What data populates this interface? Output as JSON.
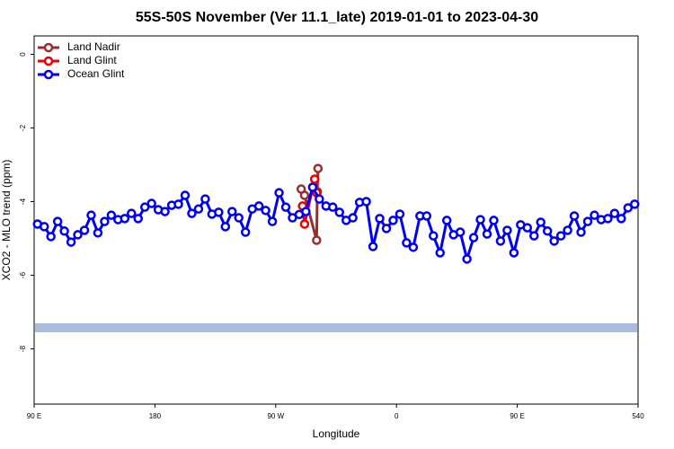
{
  "chart_data": {
    "type": "line",
    "title": "55S-50S November (Ver 11.1_late)   2019-01-01 to 2023-04-30",
    "xlabel": "Longitude",
    "ylabel": "XCO2 - MLO trend (ppm)",
    "xlim": [
      90,
      540
    ],
    "xticks": [
      {
        "value": 90,
        "label": "90 E"
      },
      180,
      {
        "value": 270,
        "label": "90 W"
      },
      {
        "value": 360,
        "label": "0"
      },
      {
        "value": 450,
        "label": "90 E"
      },
      540
    ],
    "ylim": [
      -9.5,
      0.5
    ],
    "yticks": [
      0,
      -2,
      -4,
      -6,
      -8
    ],
    "legend": "upper left",
    "series": [
      {
        "name": "Land Nadir",
        "color": "#9b2d2d",
        "x": [
          289,
          291.5,
          300.5,
          301,
          301.5
        ],
        "values": [
          -3.66,
          -3.83,
          -5.05,
          -3.73,
          -3.1
        ]
      },
      {
        "name": "Land Glint",
        "color": "#ee0000",
        "x": [
          290,
          291.5,
          299,
          300.5
        ],
        "values": [
          -4.12,
          -4.61,
          -3.39,
          -3.76
        ]
      },
      {
        "name": "Ocean Glint",
        "color": "#0000ee",
        "x": [
          92.5,
          97.5,
          102.5,
          107.5,
          112.5,
          117.5,
          122.5,
          127.5,
          132.5,
          137.5,
          142.5,
          147.5,
          152.5,
          157.5,
          162.5,
          167.5,
          172.5,
          177.5,
          182.5,
          187.5,
          192.5,
          197.5,
          202.5,
          207.5,
          212.5,
          217.5,
          222.5,
          227.5,
          232.5,
          237.5,
          242.5,
          247.5,
          252.5,
          257.5,
          262.5,
          267.5,
          272.5,
          277.5,
          282.5,
          287.5,
          292.5,
          297.5,
          302.5,
          307.5,
          312.5,
          317.5,
          322.5,
          327.5,
          332.5,
          337.5,
          342.5,
          347.5,
          352.5,
          357.5,
          362.5,
          367.5,
          372.5,
          377.5,
          382.5,
          387.5,
          392.5,
          397.5,
          402.5,
          407.5,
          412.5,
          417.5,
          422.5,
          427.5,
          432.5,
          437.5,
          442.5,
          447.5,
          452.5,
          457.5,
          462.5,
          467.5,
          472.5,
          477.5,
          482.5,
          487.5,
          492.5,
          497.5,
          502.5,
          507.5,
          512.5,
          517.5,
          522.5,
          527.5,
          532.5,
          537.5
        ],
        "values": [
          -4.61,
          -4.68,
          -4.95,
          -4.54,
          -4.8,
          -5.1,
          -4.9,
          -4.78,
          -4.37,
          -4.85,
          -4.54,
          -4.37,
          -4.49,
          -4.46,
          -4.32,
          -4.46,
          -4.15,
          -4.05,
          -4.22,
          -4.27,
          -4.1,
          -4.07,
          -3.83,
          -4.32,
          -4.2,
          -3.93,
          -4.34,
          -4.29,
          -4.68,
          -4.27,
          -4.44,
          -4.83,
          -4.2,
          -4.12,
          -4.24,
          -4.54,
          -3.76,
          -4.15,
          -4.44,
          -4.35,
          -4.27,
          -3.61,
          -3.93,
          -4.12,
          -4.15,
          -4.29,
          -4.51,
          -4.44,
          -4.02,
          -4.0,
          -5.22,
          -4.46,
          -4.73,
          -4.51,
          -4.34,
          -5.12,
          -5.24,
          -4.39,
          -4.39,
          -4.93,
          -5.39,
          -4.51,
          -4.9,
          -4.83,
          -5.56,
          -4.98,
          -4.49,
          -4.88,
          -4.51,
          -5.07,
          -4.78,
          -5.39,
          -4.63,
          -4.71,
          -4.93,
          -4.56,
          -4.8,
          -5.07,
          -4.93,
          -4.78,
          -4.39,
          -4.83,
          -4.54,
          -4.37,
          -4.49,
          -4.46,
          -4.32,
          -4.46,
          -4.17,
          -4.07
        ]
      }
    ]
  }
}
